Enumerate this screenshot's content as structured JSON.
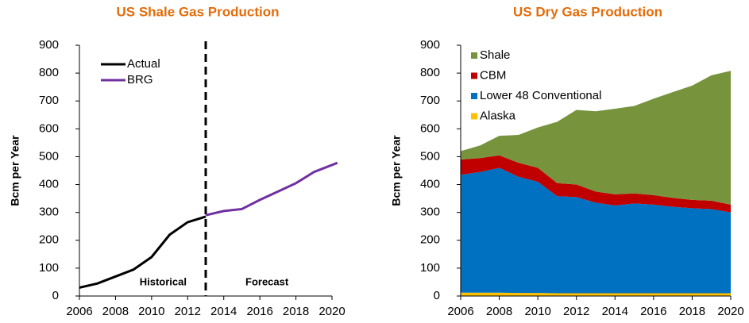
{
  "chart_data": [
    {
      "type": "line",
      "title": "US Shale Gas Production",
      "y_label": "Bcm per Year",
      "xlim": [
        2006,
        2020
      ],
      "xticks": [
        2006,
        2008,
        2010,
        2012,
        2014,
        2016,
        2018,
        2020
      ],
      "ylim": [
        0,
        900
      ],
      "yticks": [
        0,
        100,
        200,
        300,
        400,
        500,
        600,
        700,
        800,
        900
      ],
      "legend": "upper left",
      "divider_x": 2013,
      "annotations": [
        "Historical",
        "Forecast"
      ],
      "series": [
        {
          "name": "Actual",
          "color": "#000000",
          "x": [
            2006,
            2007,
            2008,
            2009,
            2010,
            2011,
            2012,
            2013
          ],
          "values": [
            30,
            45,
            70,
            95,
            140,
            220,
            265,
            285
          ]
        },
        {
          "name": "BRG",
          "color": "#7030a0",
          "x": [
            2013,
            2014,
            2015,
            2016,
            2017,
            2018,
            2019,
            2020.3
          ],
          "values": [
            290,
            305,
            312,
            345,
            375,
            405,
            445,
            478
          ]
        }
      ]
    },
    {
      "type": "stacked_area",
      "title": "US Dry Gas Production",
      "y_label": "Bcm per Year",
      "xlim": [
        2006,
        2020
      ],
      "xticks": [
        2006,
        2008,
        2010,
        2012,
        2014,
        2016,
        2018,
        2020
      ],
      "ylim": [
        0,
        900
      ],
      "yticks": [
        0,
        100,
        200,
        300,
        400,
        500,
        600,
        700,
        800,
        900
      ],
      "legend": "upper left",
      "x": [
        2006,
        2007,
        2008,
        2009,
        2010,
        2011,
        2012,
        2013,
        2014,
        2015,
        2016,
        2017,
        2018,
        2019,
        2020
      ],
      "series": [
        {
          "name": "Alaska",
          "color": "#ffc000",
          "values": [
            12,
            12,
            12,
            11,
            11,
            10,
            10,
            10,
            10,
            10,
            10,
            10,
            10,
            10,
            10
          ]
        },
        {
          "name": "Lower 48 Conventional",
          "color": "#0070c0",
          "values": [
            423,
            433,
            448,
            417,
            399,
            348,
            345,
            325,
            315,
            322,
            318,
            310,
            305,
            302,
            290
          ]
        },
        {
          "name": "CBM",
          "color": "#c00000",
          "values": [
            55,
            50,
            45,
            50,
            50,
            47,
            45,
            40,
            40,
            36,
            34,
            32,
            30,
            30,
            28
          ]
        },
        {
          "name": "Shale",
          "color": "#77933c",
          "values": [
            30,
            45,
            70,
            100,
            145,
            220,
            268,
            288,
            307,
            314,
            346,
            380,
            410,
            450,
            480
          ]
        }
      ]
    }
  ]
}
